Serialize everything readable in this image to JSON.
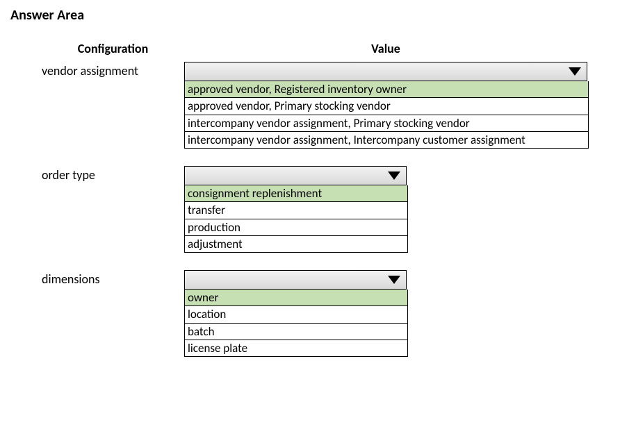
{
  "title": "Answer Area",
  "headers": {
    "col1": "Configuration",
    "col2": "Value"
  },
  "rows": [
    {
      "label": "vendor assignment",
      "width": "w-wide",
      "options": [
        {
          "text": "approved vendor, Registered inventory owner",
          "selected": true
        },
        {
          "text": "approved vendor, Primary stocking vendor",
          "selected": false
        },
        {
          "text": "intercompany vendor assignment, Primary stocking vendor",
          "selected": false
        },
        {
          "text": "intercompany vendor assignment, Intercompany customer assignment",
          "selected": false
        }
      ]
    },
    {
      "label": "order type",
      "width": "w-mid",
      "options": [
        {
          "text": "consignment replenishment",
          "selected": true
        },
        {
          "text": "transfer",
          "selected": false
        },
        {
          "text": "production",
          "selected": false
        },
        {
          "text": "adjustment",
          "selected": false
        }
      ]
    },
    {
      "label": "dimensions",
      "width": "w-mid",
      "options": [
        {
          "text": "owner",
          "selected": true
        },
        {
          "text": "location",
          "selected": false
        },
        {
          "text": "batch",
          "selected": false
        },
        {
          "text": "license plate",
          "selected": false
        }
      ]
    }
  ],
  "colors": {
    "selected_bg": "#c6e0b4",
    "dropdown_bg_top": "#f2f2f2",
    "dropdown_bg_bottom": "#d9d9d9",
    "border": "#000000",
    "text": "#000000",
    "page_bg": "#ffffff"
  }
}
